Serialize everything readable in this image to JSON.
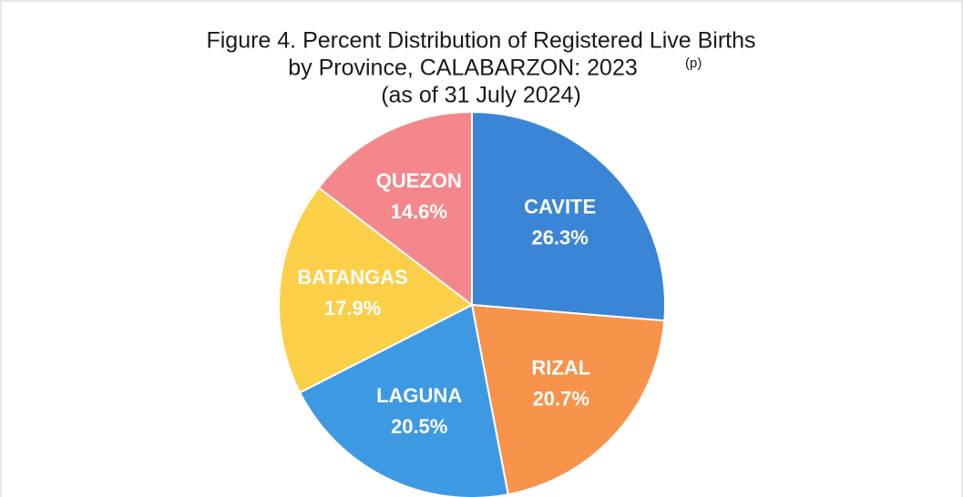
{
  "chart_data": {
    "type": "pie",
    "title": [
      "Figure 4. Percent Distribution of Registered Live Births",
      "by Province, CALABARZON: 2023"
    ],
    "title_note": "(p)",
    "subtitle": "(as of 31 July 2024)",
    "categories": [
      "CAVITE",
      "RIZAL",
      "LAGUNA",
      "BATANGAS",
      "QUEZON"
    ],
    "values": [
      26.3,
      20.7,
      20.5,
      17.9,
      14.6
    ],
    "value_labels": [
      "26.3%",
      "20.7%",
      "20.5%",
      "17.9%",
      "14.6%"
    ],
    "colors": [
      "#3a85d6",
      "#f7934a",
      "#3d9ae2",
      "#fbcf48",
      "#f4878b"
    ]
  }
}
